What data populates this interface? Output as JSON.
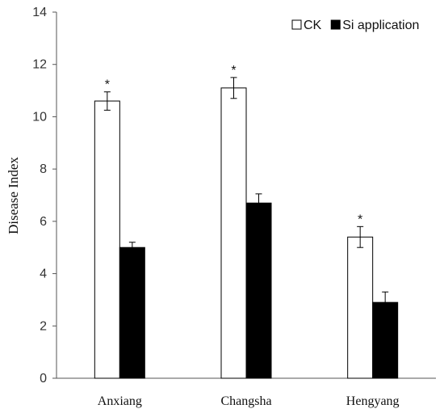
{
  "chart_data": {
    "type": "bar",
    "categories": [
      "Anxiang",
      "Changsha",
      "Hengyang"
    ],
    "series": [
      {
        "name": "CK",
        "values": [
          10.6,
          11.1,
          5.4
        ],
        "errors": [
          0.35,
          0.4,
          0.4
        ],
        "color": "#ffffff",
        "significance": [
          "*",
          "*",
          "*"
        ]
      },
      {
        "name": "Si application",
        "values": [
          5.0,
          6.7,
          2.9
        ],
        "errors": [
          0.2,
          0.35,
          0.4
        ],
        "color": "#000000",
        "significance": [
          "",
          "",
          ""
        ]
      }
    ],
    "ylabel": "Disease Index",
    "ylim": [
      0,
      14
    ],
    "yticks": [
      "0",
      "2",
      "4",
      "6",
      "8",
      "10",
      "12",
      "14"
    ],
    "grid": false,
    "legend_position": "top-right"
  }
}
